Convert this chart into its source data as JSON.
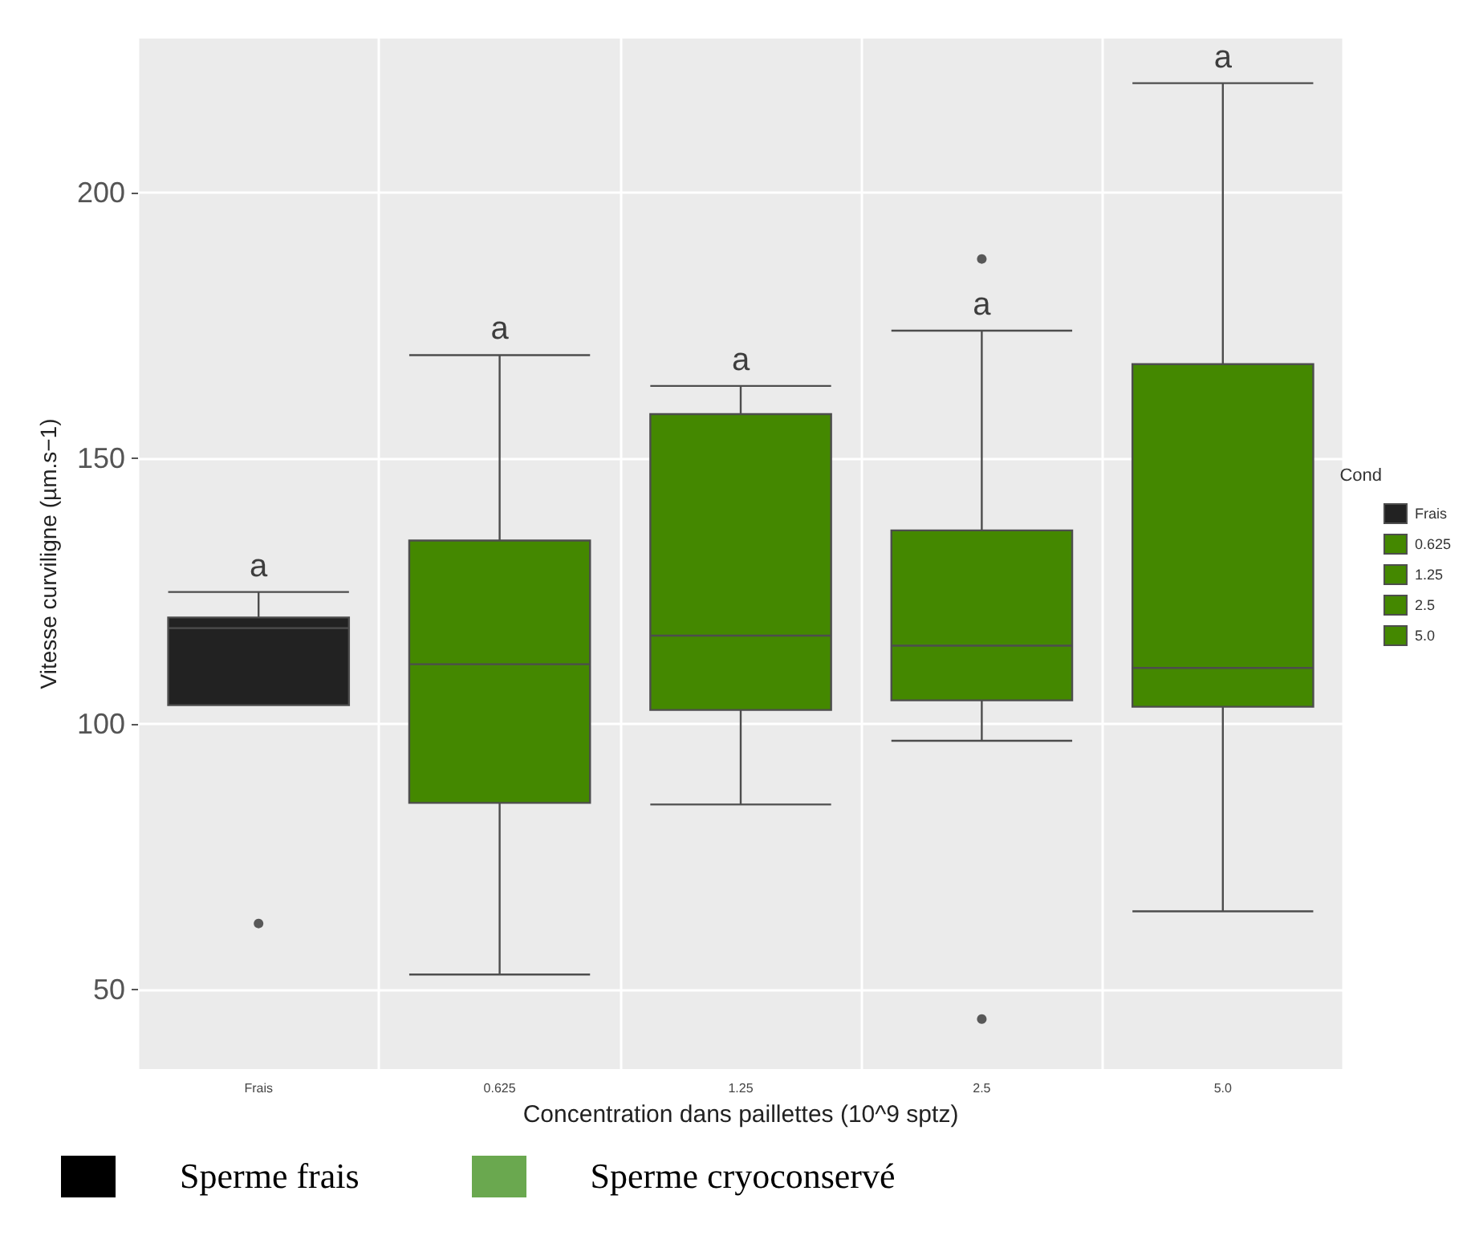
{
  "chart_data": {
    "type": "box",
    "xlabel": "Concentration dans paillettes (10^9 sptz)",
    "ylabel": "Vitesse curviligne (µm.s−1)",
    "categories": [
      "Frais",
      "0.625",
      "1.25",
      "2.5",
      "5.0"
    ],
    "series": [
      {
        "name": "Frais",
        "color": "#222222",
        "boxes": [
          {
            "low": 103.5,
            "q1": 103.5,
            "median": 118,
            "q3": 120,
            "high": 124.8,
            "outliers": [
              62.4
            ]
          },
          null,
          null,
          null,
          null
        ]
      },
      {
        "name": "0.625",
        "color": "#448800",
        "boxes": [
          null,
          {
            "low": 52.8,
            "q1": 85.1,
            "median": 111.2,
            "q3": 134.5,
            "high": 169.4
          },
          null,
          null,
          null
        ]
      },
      {
        "name": "1.25",
        "color": "#448800",
        "boxes": [
          null,
          null,
          {
            "low": 84.8,
            "q1": 102.6,
            "median": 116.6,
            "q3": 158.3,
            "high": 163.6
          },
          null,
          null
        ]
      },
      {
        "name": "2.5",
        "color": "#448800",
        "boxes": [
          null,
          null,
          null,
          {
            "low": 96.8,
            "q1": 104.4,
            "median": 114.7,
            "q3": 136.4,
            "high": 174,
            "outliers": [
              187.5,
              44.4
            ]
          },
          null
        ]
      },
      {
        "name": "5.0",
        "color": "#448800",
        "boxes": [
          null,
          null,
          null,
          null,
          {
            "low": 64.7,
            "q1": 103.2,
            "median": 110.5,
            "q3": 167.7,
            "high": 220.6
          }
        ]
      }
    ],
    "ylim": [
      35,
      229
    ],
    "yticks": [
      50,
      100,
      150,
      200
    ],
    "grid": true,
    "legend": "right",
    "legend_title": "Cond",
    "annotations": [
      "a",
      "a",
      "a",
      "a",
      "a",
      "Sperme frais",
      "Sperme cryoconservé"
    ]
  }
}
